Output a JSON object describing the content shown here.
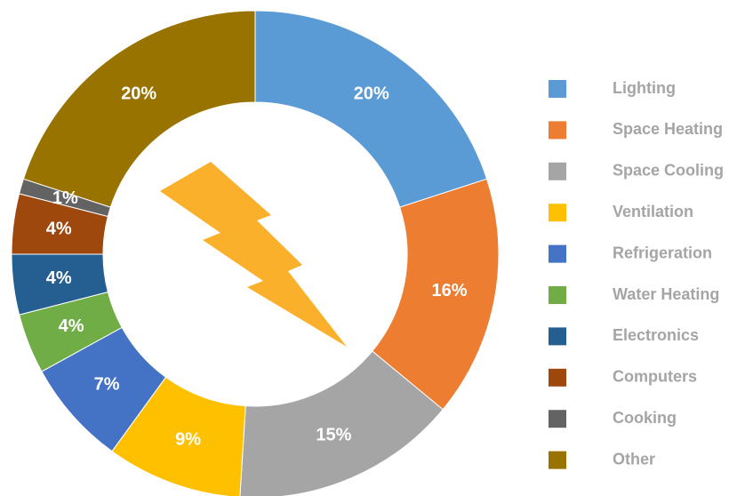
{
  "chart_data": {
    "type": "donut",
    "categories": [
      "Lighting",
      "Space Heating",
      "Space Cooling",
      "Ventilation",
      "Refrigeration",
      "Water Heating",
      "Electronics",
      "Computers",
      "Cooking",
      "Other"
    ],
    "values": [
      20,
      16,
      15,
      9,
      7,
      4,
      4,
      4,
      1,
      20
    ],
    "value_labels": [
      "20%",
      "16%",
      "15%",
      "9%",
      "7%",
      "4%",
      "4%",
      "4%",
      "1%",
      "20%"
    ],
    "colors": [
      "#5b9bd5",
      "#ed7d31",
      "#a5a5a5",
      "#ffc000",
      "#4472c4",
      "#70ad47",
      "#255e91",
      "#9e480e",
      "#636363",
      "#997300"
    ],
    "legend": "right"
  }
}
